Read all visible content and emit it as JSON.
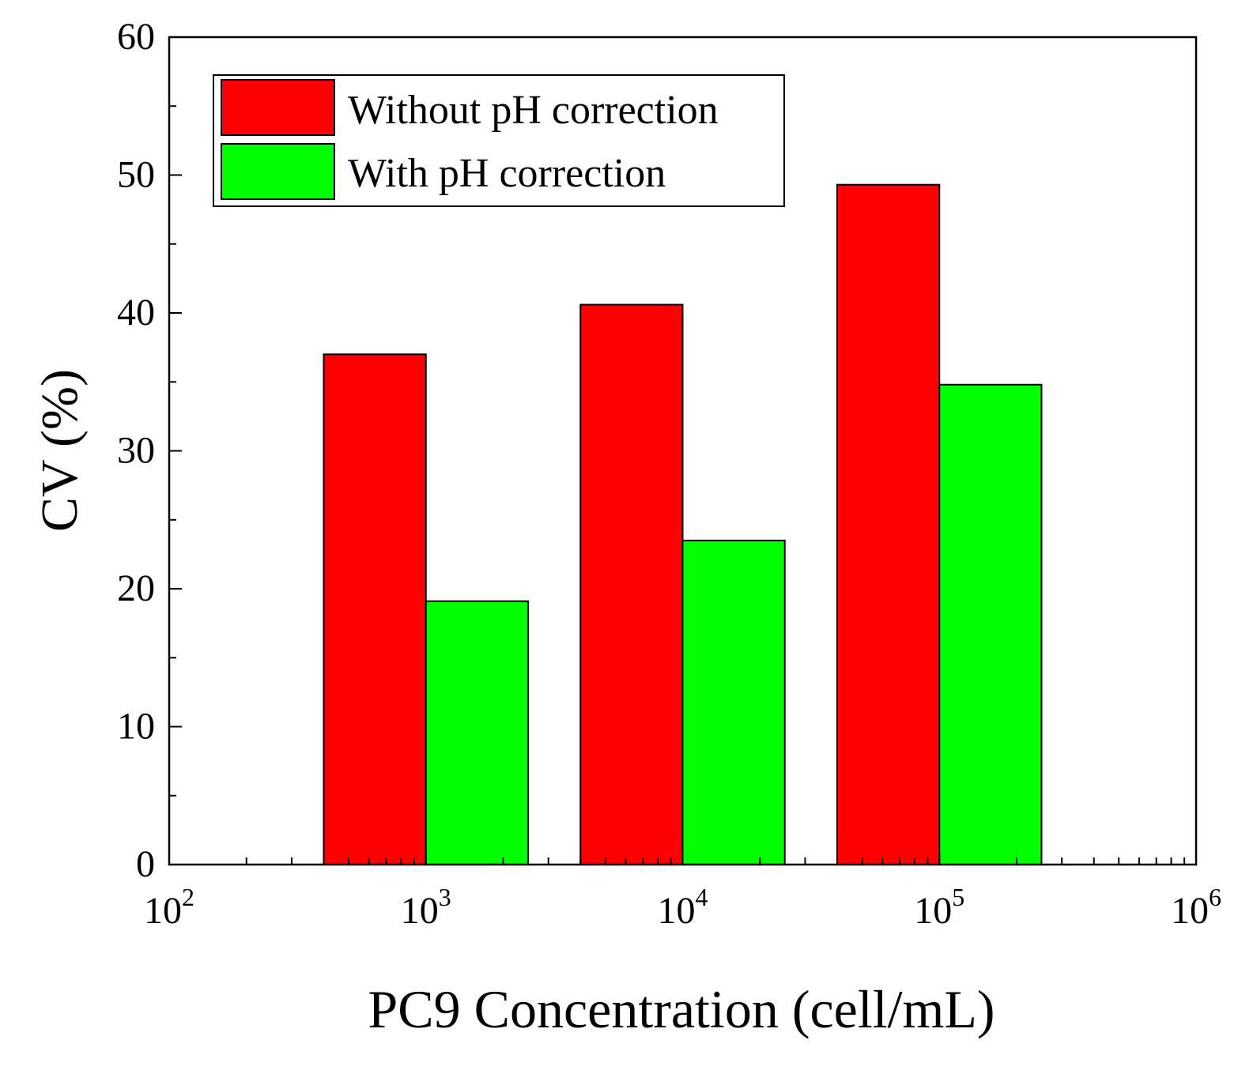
{
  "chart_data": {
    "type": "bar",
    "xscale": "log",
    "xlim": [
      100,
      1000000
    ],
    "ylim": [
      0,
      60
    ],
    "xlabel": "PC9 Concentration (cell/mL)",
    "ylabel": "CV (%)",
    "x_tick_labels": [
      {
        "base": "10",
        "exp": "2",
        "value": 100
      },
      {
        "base": "10",
        "exp": "3",
        "value": 1000
      },
      {
        "base": "10",
        "exp": "4",
        "value": 10000
      },
      {
        "base": "10",
        "exp": "5",
        "value": 100000
      },
      {
        "base": "10",
        "exp": "6",
        "value": 1000000
      }
    ],
    "y_ticks": [
      0,
      10,
      20,
      30,
      40,
      50,
      60
    ],
    "y_tick_labels": [
      "0",
      "10",
      "20",
      "30",
      "40",
      "50",
      "60"
    ],
    "categories": [
      "10^3",
      "10^4",
      "10^5"
    ],
    "category_values": [
      1000,
      10000,
      100000
    ],
    "series": [
      {
        "name": "Without pH correction",
        "color": "#ff0000",
        "values": [
          37.0,
          40.6,
          49.3
        ]
      },
      {
        "name": "With pH correction",
        "color": "#00ff00",
        "values": [
          19.1,
          23.5,
          34.8
        ]
      }
    ],
    "legend_position": "top-left",
    "grid": false
  }
}
